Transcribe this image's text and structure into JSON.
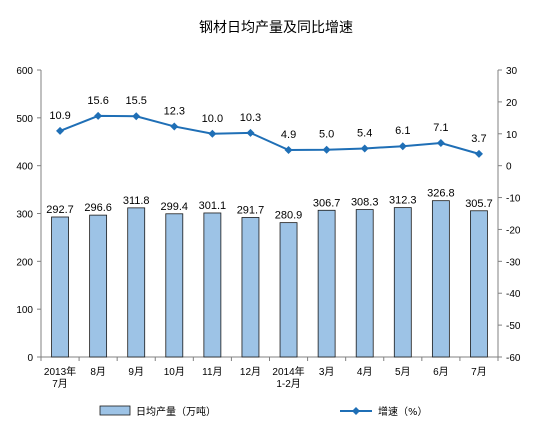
{
  "chart_data": {
    "type": "bar+line",
    "title": "钢材日均产量及同比增速",
    "categories": [
      "2013年\n7月",
      "8月",
      "9月",
      "10月",
      "11月",
      "12月",
      "2014年\n1-2月",
      "3月",
      "4月",
      "5月",
      "6月",
      "7月"
    ],
    "series": [
      {
        "name": "日均产量（万吨）",
        "type": "bar",
        "axis": "left",
        "values": [
          292.7,
          296.6,
          311.8,
          299.4,
          301.1,
          291.7,
          280.9,
          306.7,
          308.3,
          312.3,
          326.8,
          305.7
        ],
        "color": "#9dc3e6"
      },
      {
        "name": "增速（%）",
        "type": "line",
        "axis": "right",
        "values": [
          10.9,
          15.6,
          15.5,
          12.3,
          10.0,
          10.3,
          4.9,
          5.0,
          5.4,
          6.1,
          7.1,
          3.7
        ],
        "color": "#1f6fb6"
      }
    ],
    "y_left": {
      "min": 0,
      "max": 600,
      "ticks": [
        0,
        100,
        200,
        300,
        400,
        500,
        600
      ]
    },
    "y_right": {
      "min": -60,
      "max": 30,
      "ticks": [
        -60,
        -50,
        -40,
        -30,
        -20,
        -10,
        0,
        10,
        20,
        30
      ]
    },
    "legend_position": "bottom",
    "grid": false
  }
}
